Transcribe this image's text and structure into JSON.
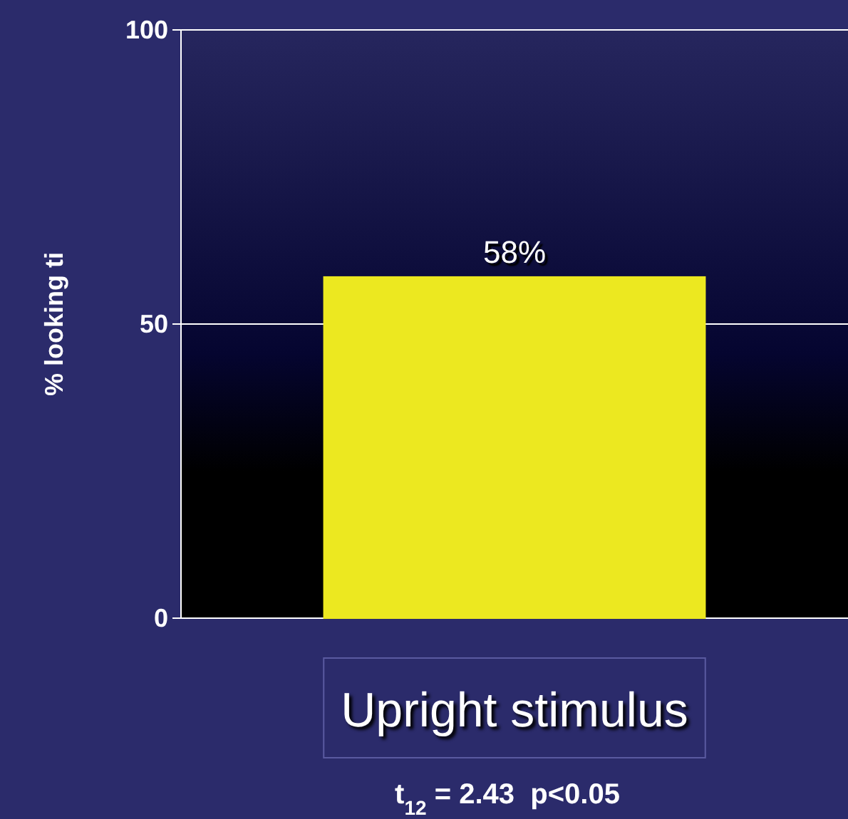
{
  "chart_data": {
    "type": "bar",
    "ylabel": "% looking ti",
    "categories": [
      "Upright stimulus"
    ],
    "values": [
      58
    ],
    "color": "#ece820",
    "value_labels": [
      "58%"
    ],
    "ylim": [
      0,
      100
    ],
    "yticks": [
      0,
      50,
      100
    ],
    "grid": "y",
    "annotations": [
      "t$_{12}$ = 2.43  p<0.05"
    ]
  }
}
